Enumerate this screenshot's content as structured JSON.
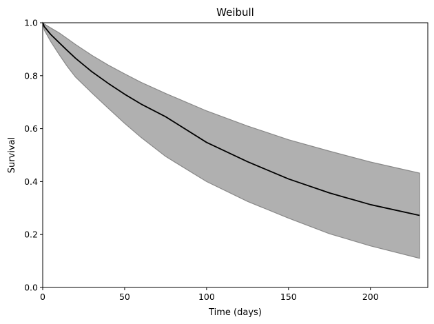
{
  "chart_data": {
    "type": "line",
    "title": "Weibull",
    "xlabel": "Time (days)",
    "ylabel": "Survival",
    "xlim": [
      0,
      235
    ],
    "ylim": [
      0,
      1.0
    ],
    "xticks": [
      0,
      50,
      100,
      150,
      200
    ],
    "yticks": [
      0.0,
      0.2,
      0.4,
      0.6,
      0.8,
      1.0
    ],
    "grid": false,
    "series": [
      {
        "color": "#000000",
        "x": [
          0,
          1,
          5,
          10,
          15,
          20,
          30,
          40,
          50,
          60,
          75,
          100,
          125,
          150,
          175,
          200,
          230
        ],
        "y": [
          1.0,
          0.985,
          0.955,
          0.925,
          0.895,
          0.866,
          0.815,
          0.771,
          0.73,
          0.693,
          0.645,
          0.548,
          0.475,
          0.41,
          0.357,
          0.313,
          0.272
        ]
      }
    ],
    "confidence_band": {
      "color": "#b0b0b0",
      "edge_color": "#888888",
      "x": [
        0,
        1,
        5,
        10,
        15,
        20,
        30,
        40,
        50,
        60,
        75,
        100,
        125,
        150,
        175,
        200,
        230
      ],
      "upper": [
        1.0,
        0.995,
        0.98,
        0.962,
        0.94,
        0.918,
        0.877,
        0.84,
        0.807,
        0.775,
        0.733,
        0.667,
        0.61,
        0.558,
        0.515,
        0.474,
        0.432
      ],
      "lower": [
        1.0,
        0.972,
        0.928,
        0.88,
        0.835,
        0.795,
        0.735,
        0.677,
        0.62,
        0.567,
        0.495,
        0.4,
        0.325,
        0.262,
        0.203,
        0.157,
        0.11
      ]
    }
  }
}
